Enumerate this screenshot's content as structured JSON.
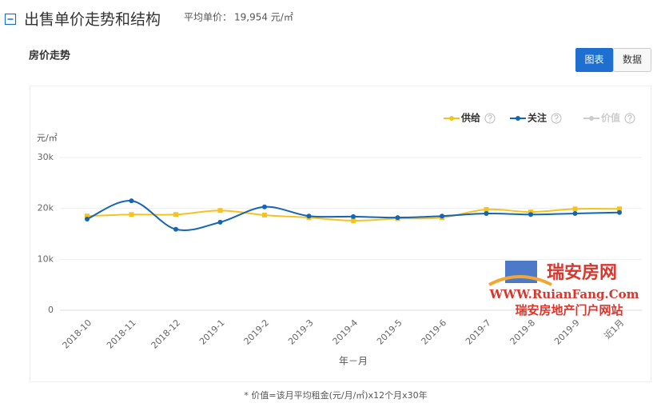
{
  "header": {
    "title": "出售单价走势和结构",
    "avg_label": "平均单价：",
    "avg_value": "19,954 元/㎡"
  },
  "section_title": "房价走势",
  "buttons": [
    "图表",
    "数据"
  ],
  "chart_data": {
    "type": "line",
    "y_unit": "元/㎡",
    "x_label": "年－月",
    "categories": [
      "2018-10",
      "2018-11",
      "2018-12",
      "2019-1",
      "2019-2",
      "2019-3",
      "2019-4",
      "2019-5",
      "2019-6",
      "2019-7",
      "2019-8",
      "2019-9",
      "近1月"
    ],
    "series": [
      {
        "name": "供给",
        "color": "#f5c320",
        "marker": "square",
        "values": [
          18500,
          18800,
          18800,
          19600,
          18700,
          18200,
          17600,
          18000,
          18200,
          19800,
          19300,
          19900,
          19900
        ]
      },
      {
        "name": "关注",
        "color": "#1565b5",
        "marker": "circle",
        "values": [
          17900,
          21500,
          15900,
          17300,
          20300,
          18500,
          18400,
          18200,
          18500,
          19000,
          18800,
          19000,
          19200
        ]
      },
      {
        "name": "价值",
        "color": "#cccccc",
        "hidden": true,
        "values": [
          null,
          null,
          null,
          null,
          null,
          null,
          null,
          null,
          null,
          null,
          null,
          null,
          null
        ]
      }
    ],
    "ylim": [
      0,
      30000
    ],
    "yticks": [
      0,
      {
        "value": 10000,
        "label": "10k"
      },
      {
        "value": 20000,
        "label": "20k"
      },
      {
        "value": 30000,
        "label": "30k"
      }
    ],
    "grid": true,
    "legend": "top-right"
  },
  "footnote": "* 价值=该月平均租金(元/月/㎡)x12个月x30年",
  "watermark": {
    "name": "瑞安房网",
    "url": "WWW.RuianFang.Com",
    "slogan": "瑞安房地产门户网站"
  }
}
